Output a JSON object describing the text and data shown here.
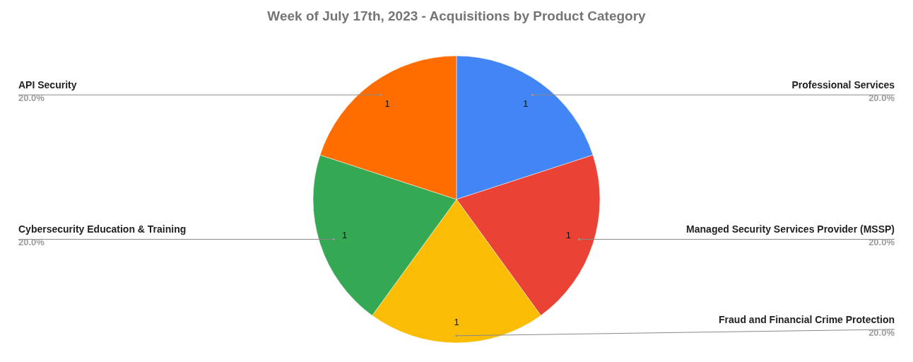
{
  "chart_data": {
    "type": "pie",
    "title": "Week of July 17th, 2023 - Acquisitions by Product Category",
    "categories": [
      "Professional Services",
      "Managed Security Services Provider (MSSP)",
      "Fraud and Financial Crime Protection",
      "Cybersecurity Education & Training",
      "API Security"
    ],
    "values": [
      1,
      1,
      1,
      1,
      1
    ],
    "colors": [
      "#4285f4",
      "#ea4335",
      "#fbbc04",
      "#34a853",
      "#ff6d01"
    ],
    "data_labels": true,
    "annotations": [
      {
        "text": "20.0%",
        "x": "Professional Services"
      },
      {
        "text": "20.0%",
        "x": "Managed Security Services Provider (MSSP)"
      },
      {
        "text": "20.0%",
        "x": "Fraud and Financial Crime Protection"
      },
      {
        "text": "20.0%",
        "x": "Cybersecurity Education & Training"
      },
      {
        "text": "20.0%",
        "x": "API Security"
      }
    ]
  }
}
